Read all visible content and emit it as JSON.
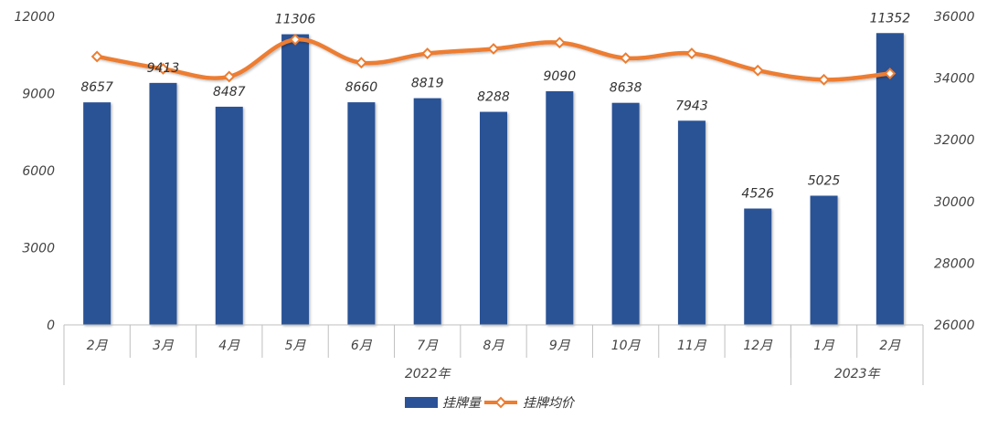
{
  "chart_data": {
    "type": "bar",
    "categories": [
      "2月",
      "3月",
      "4月",
      "5月",
      "6月",
      "7月",
      "8月",
      "9月",
      "10月",
      "11月",
      "12月",
      "1月",
      "2月"
    ],
    "groups": [
      {
        "label": "2022年",
        "start": 0,
        "end": 10
      },
      {
        "label": "2023年",
        "start": 11,
        "end": 12
      }
    ],
    "series": [
      {
        "name": "挂牌量",
        "type": "bar",
        "axis": "left",
        "color": "#2b5296",
        "values": [
          8657,
          9413,
          8487,
          11306,
          8660,
          8819,
          8288,
          9090,
          8638,
          7943,
          4526,
          5025,
          11352
        ]
      },
      {
        "name": "挂牌均价",
        "type": "line",
        "axis": "right",
        "color": "#ed7d31",
        "values": [
          34700,
          34300,
          34050,
          35250,
          34500,
          34800,
          34950,
          35150,
          34650,
          34800,
          34250,
          33950,
          34150
        ]
      }
    ],
    "left_axis": {
      "min": 0,
      "max": 12000,
      "ticks": [
        "0",
        "3000",
        "6000",
        "9000",
        "12000"
      ]
    },
    "right_axis": {
      "min": 26000,
      "max": 36000,
      "ticks": [
        "26000",
        "28000",
        "30000",
        "32000",
        "34000",
        "36000"
      ]
    },
    "legend_position": "bottom-center",
    "grid": false
  }
}
